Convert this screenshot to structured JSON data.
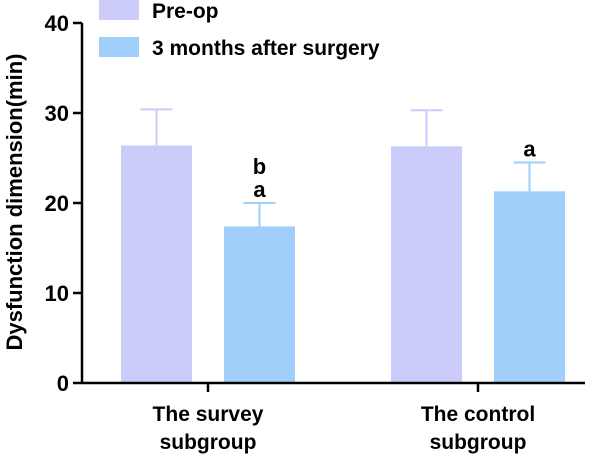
{
  "chart_data": {
    "type": "bar",
    "title": "",
    "xlabel": "",
    "ylabel": "Dysfunction dimension(min)",
    "ylim": [
      0,
      40
    ],
    "yticks": [
      0,
      10,
      20,
      30,
      40
    ],
    "grid": false,
    "legend_position": "top",
    "categories": [
      [
        "The survey",
        "subgroup"
      ],
      [
        "The control",
        "subgroup"
      ]
    ],
    "series": [
      {
        "name": "Pre-op",
        "color": "#ccccfa",
        "values": [
          26.4,
          26.3
        ],
        "errors": [
          4.0,
          4.0
        ],
        "annotations": [
          [],
          []
        ]
      },
      {
        "name": "3 months after surgery",
        "color": "#9fcffa",
        "values": [
          17.4,
          21.3
        ],
        "errors": [
          2.6,
          3.2
        ],
        "annotations": [
          [
            "b",
            "a"
          ],
          [
            "a"
          ]
        ]
      }
    ]
  }
}
